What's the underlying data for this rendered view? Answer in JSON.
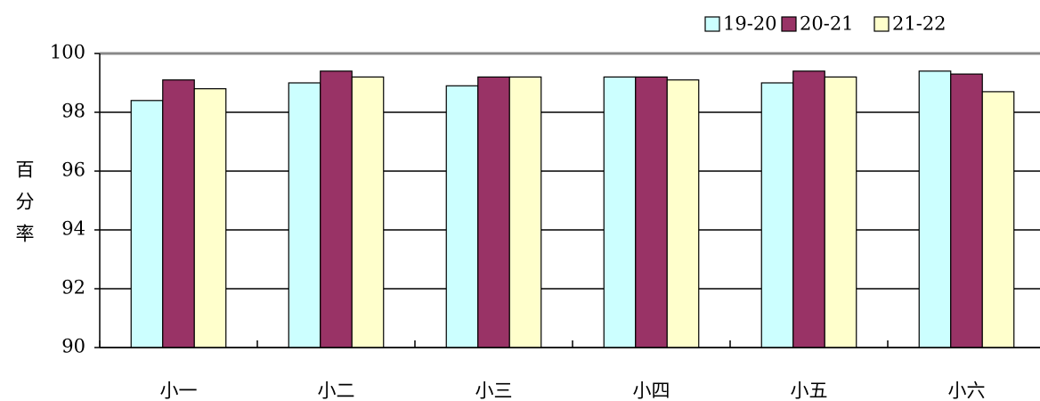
{
  "chart_data": {
    "type": "bar",
    "y_label": "百分率",
    "categories": [
      "小一",
      "小二",
      "小三",
      "小四",
      "小五",
      "小六"
    ],
    "series": [
      {
        "name": "19-20",
        "color": "#ccffff",
        "values": [
          98.4,
          99.0,
          98.9,
          99.2,
          99.0,
          99.4
        ]
      },
      {
        "name": "20-21",
        "color": "#993366",
        "values": [
          99.1,
          99.4,
          99.2,
          99.2,
          99.4,
          99.3
        ]
      },
      {
        "name": "21-22",
        "color": "#ffffcc",
        "values": [
          98.8,
          99.2,
          99.2,
          99.1,
          99.2,
          98.7
        ]
      }
    ],
    "ylim": [
      90,
      100
    ],
    "yticks": [
      90,
      92,
      94,
      96,
      98,
      100
    ],
    "grid": true,
    "legend": "top-right"
  }
}
